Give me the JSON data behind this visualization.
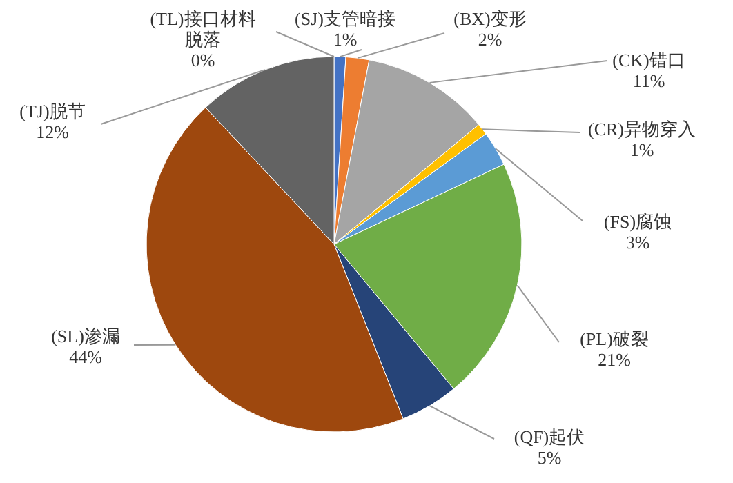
{
  "chart_data": {
    "type": "pie",
    "categories": [
      "(TL)接口材料脱落",
      "(SJ)支管暗接",
      "(BX)变形",
      "(CK)错口",
      "(CR)异物穿入",
      "(FS)腐蚀",
      "(PL)破裂",
      "(QF)起伏",
      "(SL)渗漏",
      "(TJ)脱节"
    ],
    "values": [
      0,
      1,
      2,
      11,
      1,
      3,
      21,
      5,
      44,
      12
    ],
    "colors": [
      "#997300",
      "#4472c4",
      "#ed7d31",
      "#a5a5a5",
      "#ffc000",
      "#5b9bd5",
      "#70ad47",
      "#264478",
      "#9e480e",
      "#636363"
    ],
    "value_labels": [
      "0%",
      "1%",
      "2%",
      "11%",
      "1%",
      "3%",
      "21%",
      "5%",
      "44%",
      "12%"
    ]
  }
}
